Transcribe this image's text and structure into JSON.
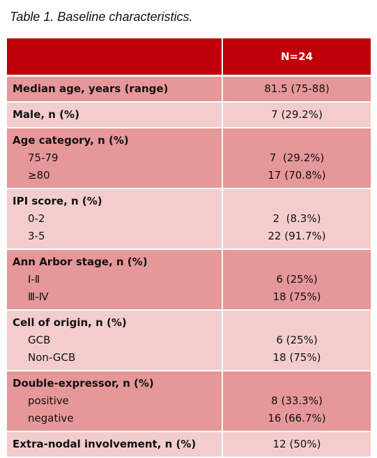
{
  "caption": "Table 1. Baseline characteristics.",
  "header": {
    "label": "",
    "value": "N=24"
  },
  "rows": [
    {
      "title": "Median age, years (range)",
      "value": "81.5 (75-88)"
    },
    {
      "title": "Male, n (%)",
      "value": "7 (29.2%)"
    },
    {
      "title": "Age category, n (%)",
      "items": [
        {
          "label": "75-79",
          "value": "7  (29.2%)"
        },
        {
          "label": "≥80",
          "value": "17 (70.8%)"
        }
      ]
    },
    {
      "title": "IPI score, n (%)",
      "items": [
        {
          "label": "0-2",
          "value": "2  (8.3%)"
        },
        {
          "label": "3-5",
          "value": "22 (91.7%)"
        }
      ]
    },
    {
      "title": "Ann Arbor stage, n (%)",
      "items": [
        {
          "label": "Ⅰ-Ⅱ",
          "value": "6 (25%)"
        },
        {
          "label": "Ⅲ-Ⅳ",
          "value": "18 (75%)"
        }
      ]
    },
    {
      "title": "Cell of origin, n (%)",
      "items": [
        {
          "label": "GCB",
          "value": "6 (25%)"
        },
        {
          "label": "Non-GCB",
          "value": "18 (75%)"
        }
      ]
    },
    {
      "title": "Double-expressor, n (%)",
      "items": [
        {
          "label": "positive",
          "value": "8 (33.3%)"
        },
        {
          "label": "negative",
          "value": "16 (66.7%)"
        }
      ]
    },
    {
      "title": "Extra-nodal involvement, n (%)",
      "value": "12 (50%)"
    }
  ],
  "colors": {
    "header": "#c0000b",
    "row_dark": "#e6979a",
    "row_light": "#f3cdcd"
  }
}
